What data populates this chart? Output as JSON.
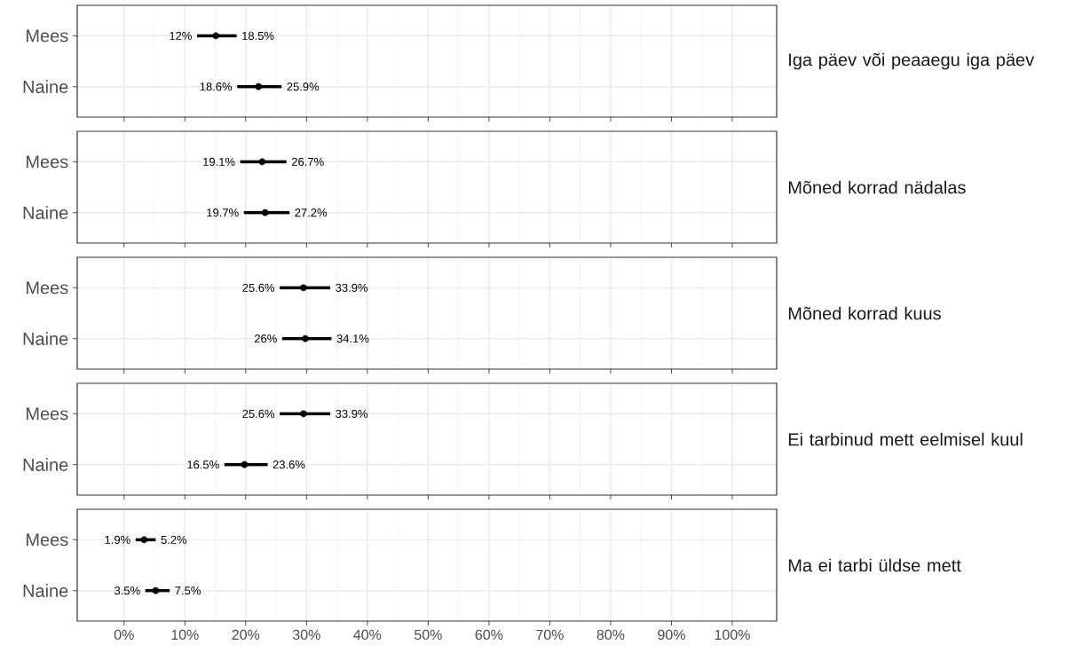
{
  "chart_data": [
    {
      "type": "scatter",
      "orientation": "horizontal",
      "y2label": "Iga päev või peaaegu iga päev",
      "categories": [
        "Mees",
        "Naine"
      ],
      "color": "#000000",
      "values": [
        15.1,
        22.1
      ],
      "errors": [
        [
          12,
          18.5
        ],
        [
          18.6,
          25.9
        ]
      ],
      "marker": "circle",
      "grid": true,
      "tick_labels": "y",
      "xlim": [
        -7.7,
        107.3
      ],
      "xticks": [
        {
          "value": 0,
          "label": null
        },
        {
          "value": 10,
          "label": null
        },
        {
          "value": 20,
          "label": null
        },
        {
          "value": 30,
          "label": null
        },
        {
          "value": 40,
          "label": null
        },
        {
          "value": 50,
          "label": null
        },
        {
          "value": 60,
          "label": null
        },
        {
          "value": 70,
          "label": null
        },
        {
          "value": 80,
          "label": null
        },
        {
          "value": 90,
          "label": null
        },
        {
          "value": 100,
          "label": null
        }
      ],
      "annotations": [
        {
          "text": "12%",
          "x": 12,
          "y": "Mees"
        },
        {
          "text": "18.5%",
          "x": 18.5,
          "y": "Mees"
        },
        {
          "text": "18.6%",
          "x": 18.6,
          "y": "Naine"
        },
        {
          "text": "25.9%",
          "x": 25.9,
          "y": "Naine"
        }
      ]
    },
    {
      "type": "scatter",
      "orientation": "horizontal",
      "y2label": "Mõned korrad nädalas",
      "categories": [
        "Mees",
        "Naine"
      ],
      "color": "#000000",
      "values": [
        22.7,
        23.2
      ],
      "errors": [
        [
          19.1,
          26.7
        ],
        [
          19.7,
          27.2
        ]
      ],
      "marker": "circle",
      "grid": true,
      "tick_labels": "y",
      "xlim": [
        -7.7,
        107.3
      ],
      "xticks": [
        {
          "value": 0,
          "label": null
        },
        {
          "value": 10,
          "label": null
        },
        {
          "value": 20,
          "label": null
        },
        {
          "value": 30,
          "label": null
        },
        {
          "value": 40,
          "label": null
        },
        {
          "value": 50,
          "label": null
        },
        {
          "value": 60,
          "label": null
        },
        {
          "value": 70,
          "label": null
        },
        {
          "value": 80,
          "label": null
        },
        {
          "value": 90,
          "label": null
        },
        {
          "value": 100,
          "label": null
        }
      ],
      "annotations": [
        {
          "text": "19.1%",
          "x": 19.1,
          "y": "Mees"
        },
        {
          "text": "26.7%",
          "x": 26.7,
          "y": "Mees"
        },
        {
          "text": "19.7%",
          "x": 19.7,
          "y": "Naine"
        },
        {
          "text": "27.2%",
          "x": 27.2,
          "y": "Naine"
        }
      ]
    },
    {
      "type": "scatter",
      "orientation": "horizontal",
      "y2label": "Mõned korrad kuus",
      "categories": [
        "Mees",
        "Naine"
      ],
      "color": "#000000",
      "values": [
        29.5,
        29.8
      ],
      "errors": [
        [
          25.6,
          33.9
        ],
        [
          26,
          34.1
        ]
      ],
      "marker": "circle",
      "grid": true,
      "tick_labels": "y",
      "xlim": [
        -7.7,
        107.3
      ],
      "xticks": [
        {
          "value": 0,
          "label": null
        },
        {
          "value": 10,
          "label": null
        },
        {
          "value": 20,
          "label": null
        },
        {
          "value": 30,
          "label": null
        },
        {
          "value": 40,
          "label": null
        },
        {
          "value": 50,
          "label": null
        },
        {
          "value": 60,
          "label": null
        },
        {
          "value": 70,
          "label": null
        },
        {
          "value": 80,
          "label": null
        },
        {
          "value": 90,
          "label": null
        },
        {
          "value": 100,
          "label": null
        }
      ],
      "annotations": [
        {
          "text": "25.6%",
          "x": 25.6,
          "y": "Mees"
        },
        {
          "text": "33.9%",
          "x": 33.9,
          "y": "Mees"
        },
        {
          "text": "26%",
          "x": 26,
          "y": "Naine"
        },
        {
          "text": "34.1%",
          "x": 34.1,
          "y": "Naine"
        }
      ]
    },
    {
      "type": "scatter",
      "orientation": "horizontal",
      "y2label": "Ei tarbinud mett eelmisel kuul",
      "categories": [
        "Mees",
        "Naine"
      ],
      "color": "#000000",
      "values": [
        29.5,
        19.8
      ],
      "errors": [
        [
          25.6,
          33.9
        ],
        [
          16.5,
          23.6
        ]
      ],
      "marker": "circle",
      "grid": true,
      "tick_labels": "y",
      "xlim": [
        -7.7,
        107.3
      ],
      "xticks": [
        {
          "value": 0,
          "label": null
        },
        {
          "value": 10,
          "label": null
        },
        {
          "value": 20,
          "label": null
        },
        {
          "value": 30,
          "label": null
        },
        {
          "value": 40,
          "label": null
        },
        {
          "value": 50,
          "label": null
        },
        {
          "value": 60,
          "label": null
        },
        {
          "value": 70,
          "label": null
        },
        {
          "value": 80,
          "label": null
        },
        {
          "value": 90,
          "label": null
        },
        {
          "value": 100,
          "label": null
        }
      ],
      "annotations": [
        {
          "text": "25.6%",
          "x": 25.6,
          "y": "Mees"
        },
        {
          "text": "33.9%",
          "x": 33.9,
          "y": "Mees"
        },
        {
          "text": "16.5%",
          "x": 16.5,
          "y": "Naine"
        },
        {
          "text": "23.6%",
          "x": 23.6,
          "y": "Naine"
        }
      ]
    },
    {
      "type": "scatter",
      "orientation": "horizontal",
      "y2label": "Ma ei tarbi üldse mett",
      "categories": [
        "Mees",
        "Naine"
      ],
      "color": "#000000",
      "values": [
        3.3,
        5.2
      ],
      "errors": [
        [
          1.9,
          5.2
        ],
        [
          3.5,
          7.5
        ]
      ],
      "marker": "circle",
      "grid": true,
      "xlim": [
        -7.7,
        107.3
      ],
      "xticks": [
        {
          "value": 0,
          "label": "0%"
        },
        {
          "value": 10,
          "label": "10%"
        },
        {
          "value": 20,
          "label": "20%"
        },
        {
          "value": 30,
          "label": "30%"
        },
        {
          "value": 40,
          "label": "40%"
        },
        {
          "value": 50,
          "label": "50%"
        },
        {
          "value": 60,
          "label": "60%"
        },
        {
          "value": 70,
          "label": "70%"
        },
        {
          "value": 80,
          "label": "80%"
        },
        {
          "value": 90,
          "label": "90%"
        },
        {
          "value": 100,
          "label": "100%"
        }
      ],
      "annotations": [
        {
          "text": "1.9%",
          "x": 1.9,
          "y": "Mees"
        },
        {
          "text": "5.2%",
          "x": 5.2,
          "y": "Mees"
        },
        {
          "text": "3.5%",
          "x": 3.5,
          "y": "Naine"
        },
        {
          "text": "7.5%",
          "x": 7.5,
          "y": "Naine"
        }
      ]
    }
  ]
}
